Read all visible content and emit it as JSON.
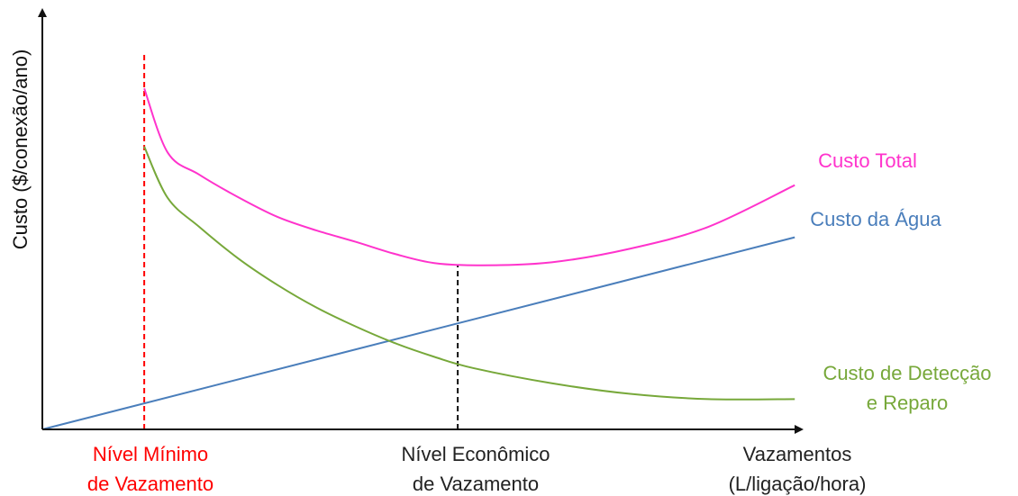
{
  "chart_data": {
    "type": "line",
    "title": "",
    "ylabel": "Custo ($/conexão/ano)",
    "xlabel_lines": [
      "Vazamentos",
      "(L/ligação/hora)"
    ],
    "grid": false,
    "legend": "labels at line ends (right)",
    "series": [
      {
        "name": "Custo Total",
        "color": "#ff33cc",
        "points": [
          [
            1.3,
            45.1
          ],
          [
            1.6,
            36.6
          ],
          [
            2,
            33.7
          ],
          [
            2.5,
            30.7
          ],
          [
            3,
            28.1
          ],
          [
            3.5,
            26.3
          ],
          [
            4,
            24.8
          ],
          [
            4.5,
            23.2
          ],
          [
            5,
            22.0
          ],
          [
            5.6,
            21.7
          ],
          [
            6.5,
            22.1
          ],
          [
            7.5,
            23.9
          ],
          [
            8.5,
            26.8
          ],
          [
            9.6,
            32.3
          ]
        ]
      },
      {
        "name": "Custo da Água",
        "color": "#4a7ebb",
        "points": [
          [
            0,
            0
          ],
          [
            9.6,
            25.4
          ]
        ]
      },
      {
        "name": "Custo de Detecção e Reparo",
        "name_lines": [
          "Custo de Detecção",
          "e Reparo"
        ],
        "color": "#77a83a",
        "points": [
          [
            1.3,
            37.4
          ],
          [
            1.6,
            30.6
          ],
          [
            2,
            26.8
          ],
          [
            2.5,
            22.6
          ],
          [
            3,
            19.1
          ],
          [
            3.5,
            16.1
          ],
          [
            4,
            13.6
          ],
          [
            4.5,
            11.4
          ],
          [
            5,
            9.6
          ],
          [
            5.5,
            8.1
          ],
          [
            6.5,
            6.1
          ],
          [
            7.5,
            4.7
          ],
          [
            8.5,
            4.0
          ],
          [
            9.6,
            4.0
          ]
        ]
      }
    ],
    "markers": [
      {
        "name": "minimum-leakage-line",
        "x": 1.3,
        "ytop": 50,
        "color": "#ff0000",
        "label_lines": [
          "Nível Mínimo",
          "de Vazamento"
        ]
      },
      {
        "name": "economic-leakage-line",
        "x": 5.3,
        "ytop": 21.7,
        "color": "#111111",
        "label_lines": [
          "Nível Econômico",
          "de Vazamento"
        ]
      }
    ]
  }
}
